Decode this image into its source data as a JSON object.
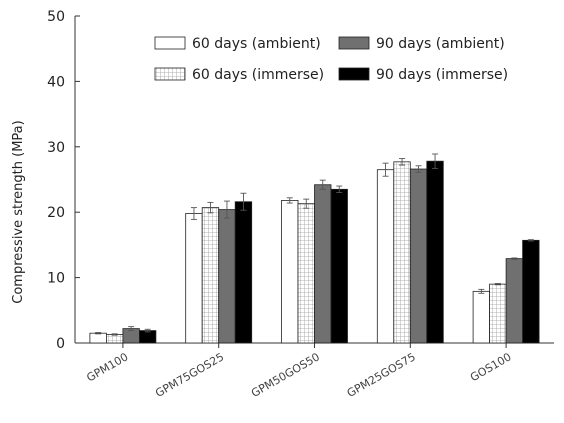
{
  "chart_data": {
    "type": "bar",
    "title": "",
    "xlabel": "",
    "ylabel": "Compressive strength (MPa)",
    "ylim": [
      0,
      50
    ],
    "yticks": [
      0,
      10,
      20,
      30,
      40,
      50
    ],
    "grid": false,
    "legend_position": "top-right",
    "categories": [
      "GPM100",
      "GPM75GOS25",
      "GPM50GOS50",
      "GPM25GOS75",
      "GOS100"
    ],
    "series": [
      {
        "name": "60 days (ambient)",
        "fill": "#ffffff",
        "pattern": "solid",
        "values": [
          1.5,
          19.8,
          21.8,
          26.5,
          7.9
        ],
        "errors": [
          0.1,
          0.9,
          0.4,
          1.0,
          0.3
        ]
      },
      {
        "name": "60 days (immerse)",
        "fill": "#ffffff",
        "pattern": "grid",
        "values": [
          1.3,
          20.7,
          21.3,
          27.7,
          9.0
        ],
        "errors": [
          0.1,
          0.8,
          0.7,
          0.5,
          0.1
        ]
      },
      {
        "name": "90 days (ambient)",
        "fill": "#707070",
        "pattern": "solid",
        "values": [
          2.2,
          20.4,
          24.2,
          26.6,
          12.9
        ],
        "errors": [
          0.3,
          1.3,
          0.7,
          0.5,
          0.1
        ]
      },
      {
        "name": "90 days (immerse)",
        "fill": "#000000",
        "pattern": "solid",
        "values": [
          1.9,
          21.6,
          23.5,
          27.8,
          15.7
        ],
        "errors": [
          0.2,
          1.3,
          0.5,
          1.1,
          0.1
        ]
      }
    ]
  }
}
